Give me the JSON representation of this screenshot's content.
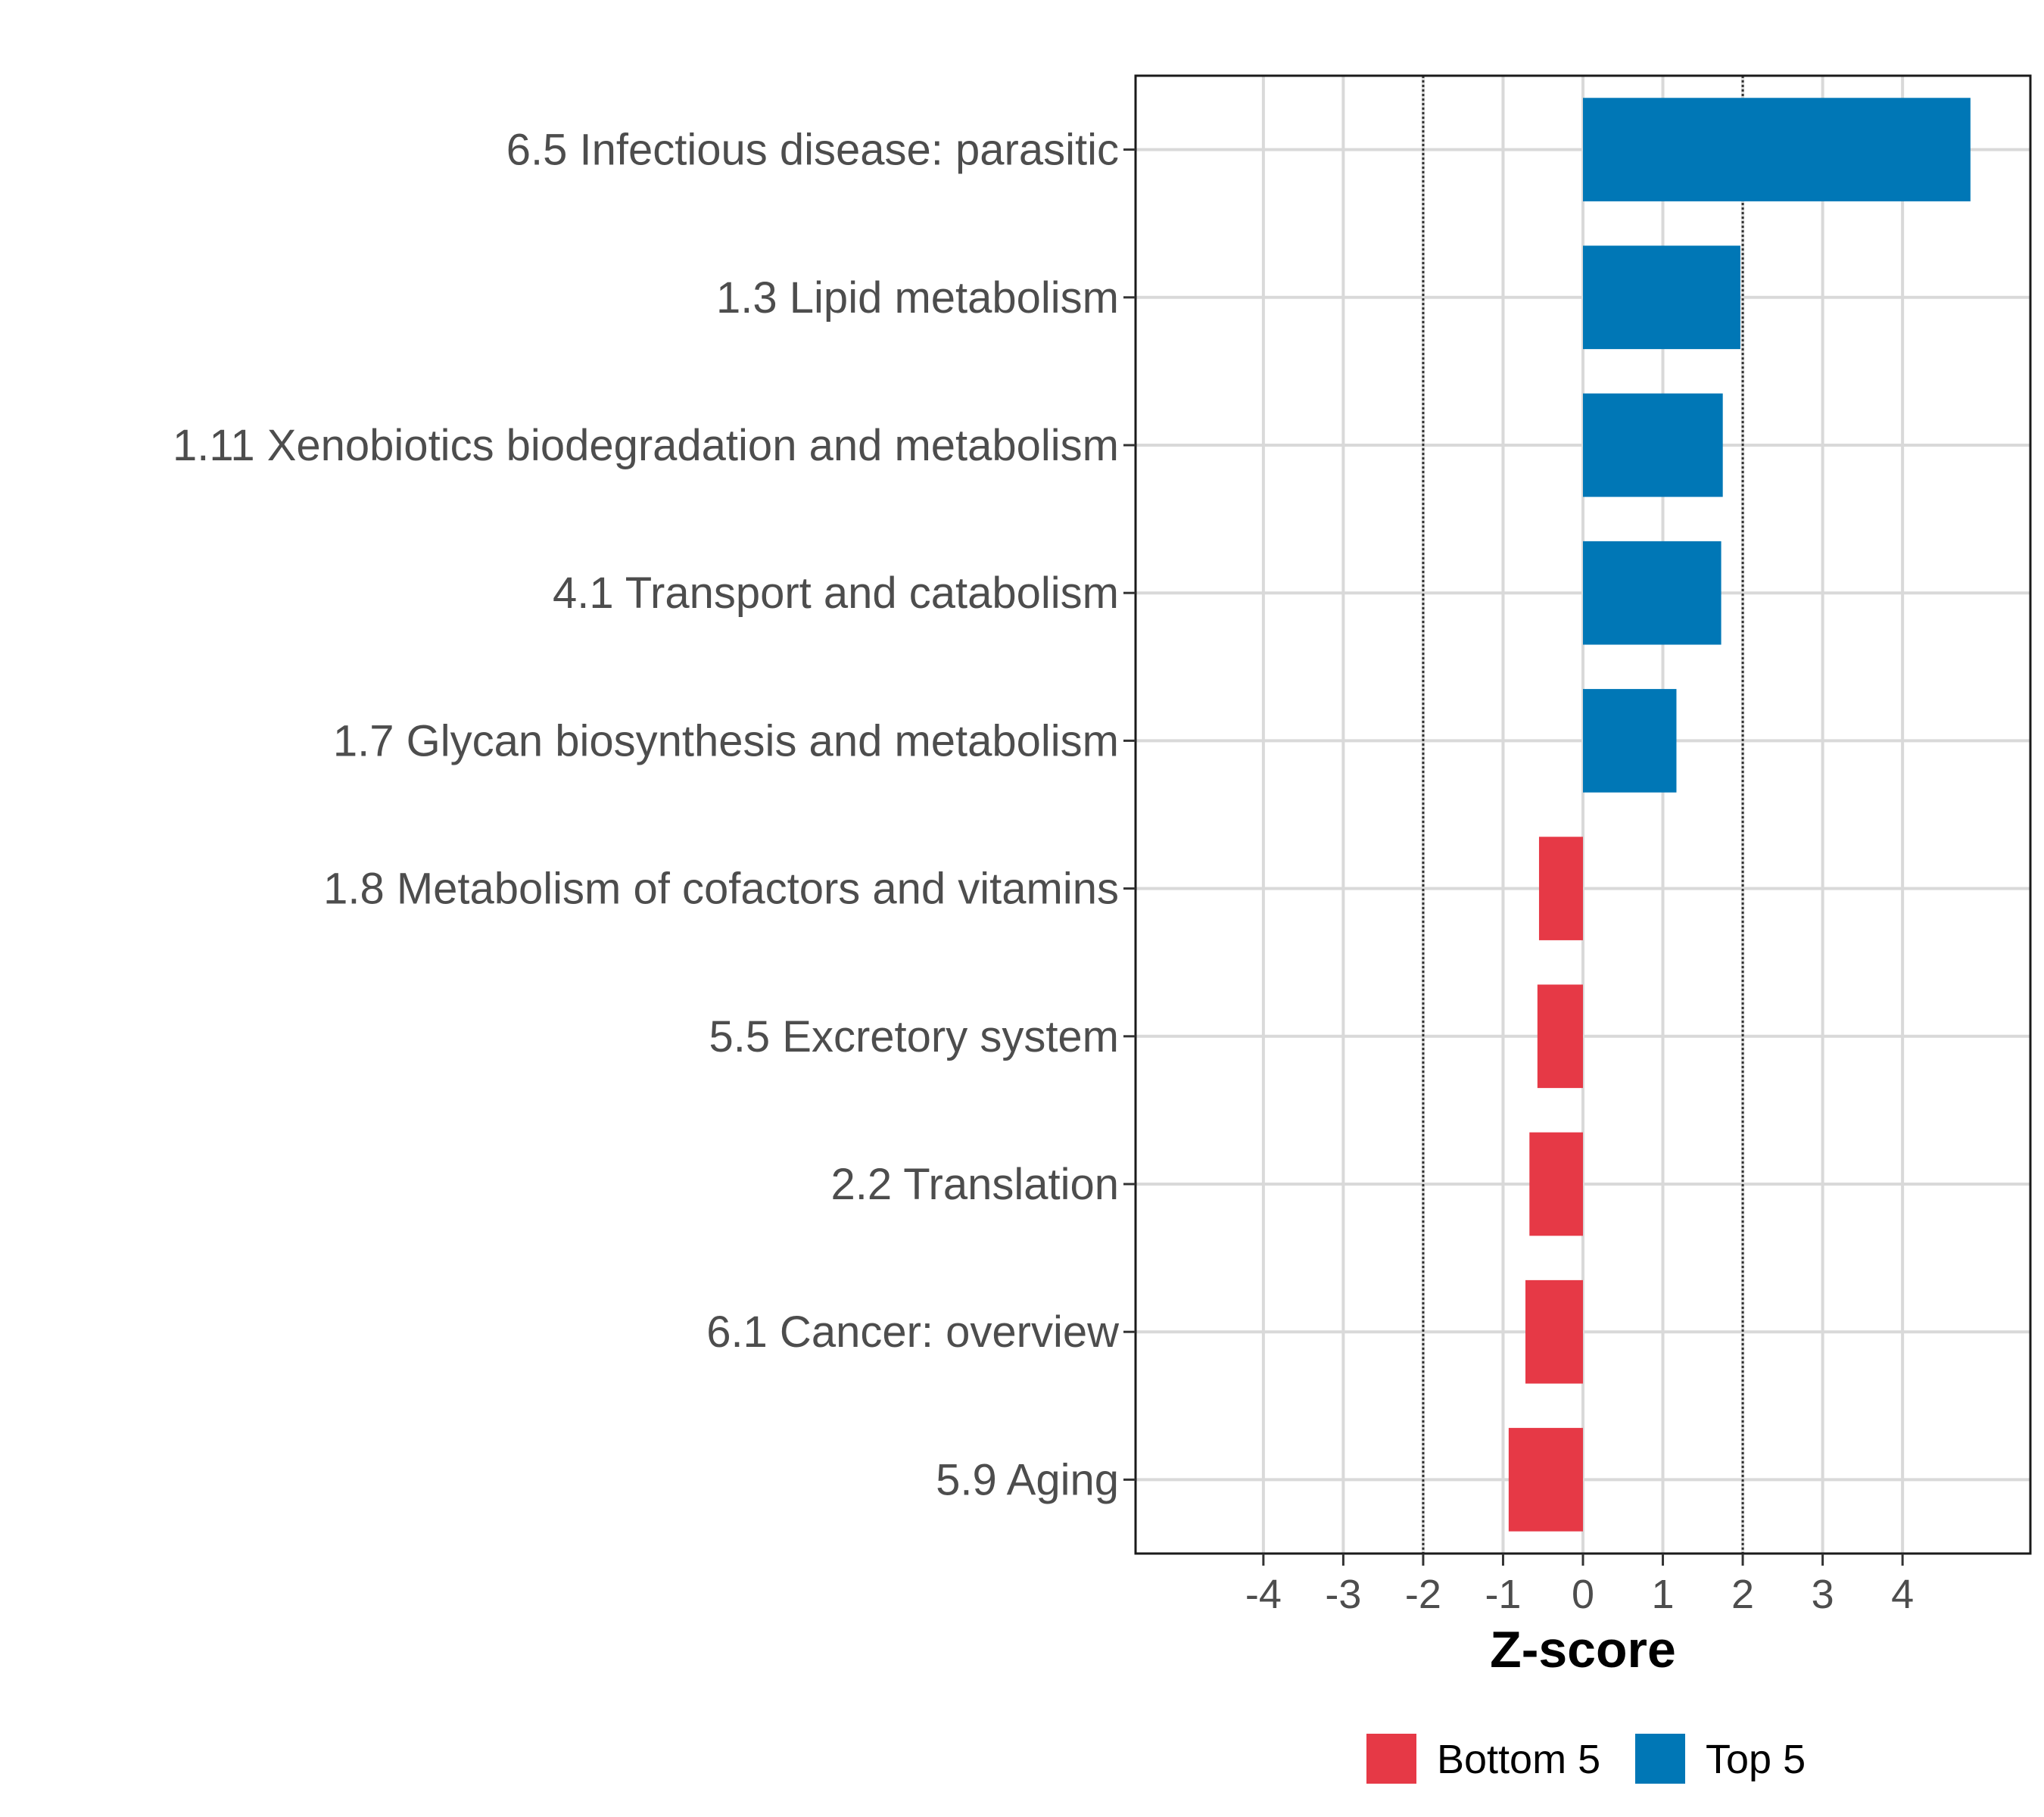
{
  "chart_data": {
    "type": "bar",
    "orientation": "horizontal",
    "title": "",
    "xlabel": "Z-score",
    "ylabel": "",
    "xlim": [
      -5.6,
      5.6
    ],
    "xticks": [
      -4,
      -3,
      -2,
      -1,
      0,
      1,
      2,
      3,
      4
    ],
    "xtick_labels": [
      "-4",
      "-3",
      "-2",
      "-1",
      "0",
      "1",
      "2",
      "3",
      "4"
    ],
    "reference_lines": [
      -2,
      2
    ],
    "grid": true,
    "legend_position": "bottom",
    "legend": [
      {
        "name": "Bottom 5",
        "color": "#e63946"
      },
      {
        "name": "Top 5",
        "color": "#0077b6"
      }
    ],
    "categories": [
      "6.5 Infectious disease: parasitic",
      "1.3 Lipid metabolism",
      "1.11 Xenobiotics biodegradation and metabolism",
      "4.1 Transport and catabolism",
      "1.7 Glycan biosynthesis and metabolism",
      "1.8 Metabolism of cofactors and vitamins",
      "5.5 Excretory system",
      "2.2 Translation",
      "6.1 Cancer: overview",
      "5.9 Aging"
    ],
    "values": [
      4.85,
      1.97,
      1.75,
      1.73,
      1.17,
      -0.55,
      -0.57,
      -0.67,
      -0.72,
      -0.93
    ],
    "groups": [
      "Top 5",
      "Top 5",
      "Top 5",
      "Top 5",
      "Top 5",
      "Bottom 5",
      "Bottom 5",
      "Bottom 5",
      "Bottom 5",
      "Bottom 5"
    ]
  }
}
